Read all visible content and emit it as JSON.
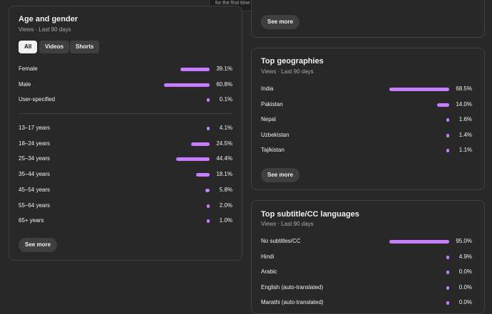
{
  "tooltip": {
    "text": "for the first time in the selected period"
  },
  "age_gender": {
    "title": "Age and gender",
    "subtitle": "Views · Last 90 days",
    "chips": [
      "All",
      "Videos",
      "Shorts"
    ],
    "gender_rows": [
      {
        "label": "Female",
        "value": "39.1%",
        "fraction": 0.391
      },
      {
        "label": "Male",
        "value": "60.8%",
        "fraction": 0.608
      },
      {
        "label": "User-specified",
        "value": "0.1%",
        "fraction": 0.001
      }
    ],
    "age_rows": [
      {
        "label": "13–17 years",
        "value": "4.1%",
        "fraction": 0.041
      },
      {
        "label": "18–24 years",
        "value": "24.5%",
        "fraction": 0.245
      },
      {
        "label": "25–34 years",
        "value": "44.4%",
        "fraction": 0.444
      },
      {
        "label": "35–44 years",
        "value": "18.1%",
        "fraction": 0.181
      },
      {
        "label": "45–54 years",
        "value": "5.8%",
        "fraction": 0.058
      },
      {
        "label": "55–64 years",
        "value": "2.0%",
        "fraction": 0.02
      },
      {
        "label": "65+ years",
        "value": "1.0%",
        "fraction": 0.01
      }
    ],
    "see_more": "See more"
  },
  "top_card": {
    "see_more": "See more"
  },
  "geographies": {
    "title": "Top geographies",
    "subtitle": "Views · Last 90 days",
    "rows": [
      {
        "label": "India",
        "value": "68.5%",
        "fraction": 0.685
      },
      {
        "label": "Pakistan",
        "value": "14.0%",
        "fraction": 0.14
      },
      {
        "label": "Nepal",
        "value": "1.6%",
        "fraction": 0.016
      },
      {
        "label": "Uzbekistan",
        "value": "1.4%",
        "fraction": 0.014
      },
      {
        "label": "Tajikistan",
        "value": "1.1%",
        "fraction": 0.011
      }
    ],
    "see_more": "See more"
  },
  "subtitles": {
    "title": "Top subtitle/CC languages",
    "subtitle": "Views · Last 90 days",
    "rows": [
      {
        "label": "No subtitles/CC",
        "value": "95.0%",
        "fraction": 0.95
      },
      {
        "label": "Hindi",
        "value": "4.9%",
        "fraction": 0.049
      },
      {
        "label": "Arabic",
        "value": "0.0%",
        "fraction": 0.0
      },
      {
        "label": "English (auto-translated)",
        "value": "0.0%",
        "fraction": 0.0
      },
      {
        "label": "Marathi (auto-translated)",
        "value": "0.0%",
        "fraction": 0.0
      }
    ]
  },
  "colors": {
    "bar": "#c77dff",
    "background": "#282828",
    "border": "#3f3f3f"
  }
}
